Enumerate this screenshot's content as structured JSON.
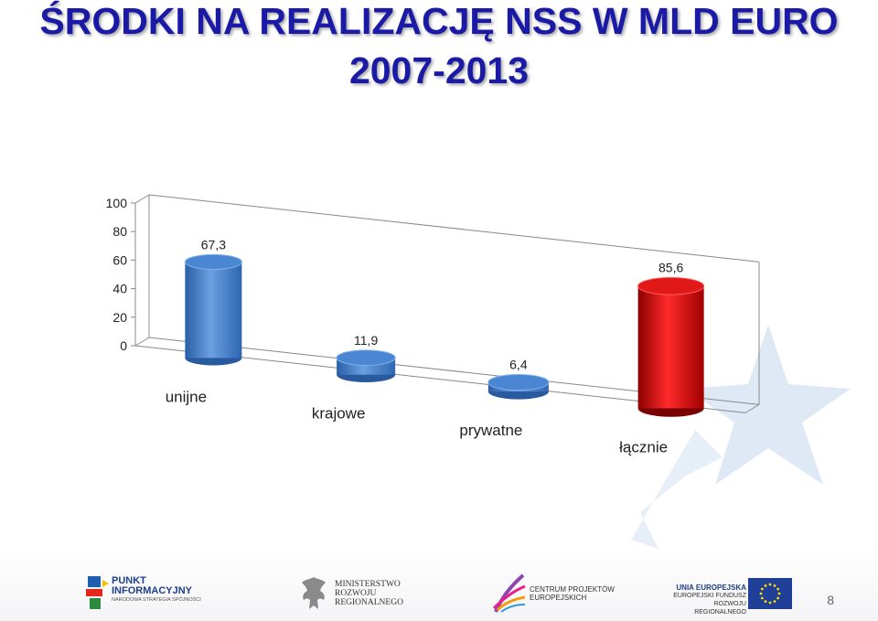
{
  "slide": {
    "title_line1": "ŚRODKI NA REALIZACJĘ NSS W MLD EURO",
    "title_line2": "2007-2013",
    "page_number": "8"
  },
  "colors": {
    "title": "#1a1aa6",
    "bar_blue": "#3f7ccc",
    "bar_red": "#d01010",
    "star_watermark": "#dce7f5"
  },
  "chart_data": {
    "type": "bar",
    "style": "3d-cylinder",
    "categories": [
      "unijne",
      "krajowe",
      "prywatne",
      "łącznie"
    ],
    "values": [
      67.3,
      11.9,
      6.4,
      85.6
    ],
    "data_labels": [
      "67,3",
      "11,9",
      "6,4",
      "85,6"
    ],
    "bar_colors": [
      "blue",
      "blue",
      "blue",
      "red"
    ],
    "y_ticks": [
      "0",
      "20",
      "40",
      "60",
      "80",
      "100"
    ],
    "ylim": [
      0,
      100
    ],
    "title": "",
    "xlabel": "",
    "ylabel": "",
    "legend": "none"
  },
  "footer": {
    "logo1": {
      "line1": "PUNKT",
      "line2": "INFORMACYJNY",
      "line3": "NARODOWA STRATEGIA SPÓJNOŚCI"
    },
    "logo2": {
      "line1": "MINISTERSTWO",
      "line2": "ROZWOJU",
      "line3": "REGIONALNEGO"
    },
    "logo3": {
      "line1": "CENTRUM PROJEKTÓW",
      "line2": "EUROPEJSKICH"
    },
    "logo4": {
      "line1": "UNIA EUROPEJSKA",
      "line2": "EUROPEJSKI FUNDUSZ",
      "line3": "ROZWOJU REGIONALNEGO"
    }
  }
}
